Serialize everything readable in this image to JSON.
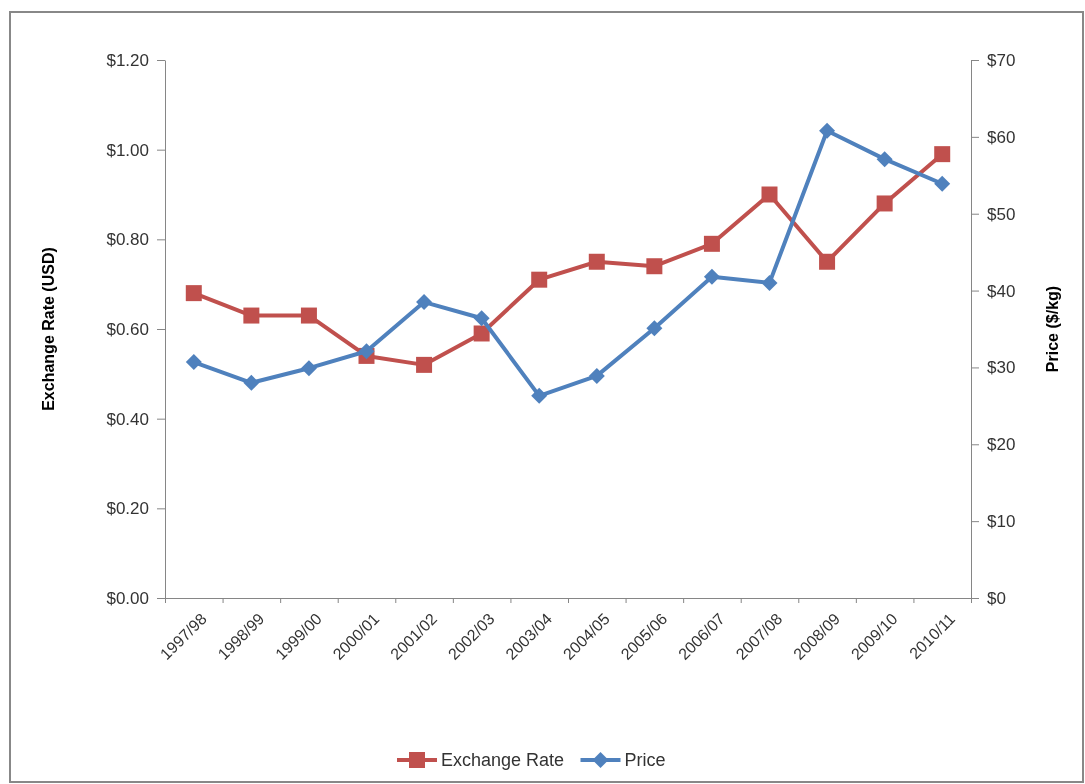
{
  "chart_data": {
    "type": "line",
    "categories": [
      "1997/98",
      "1998/99",
      "1999/00",
      "2000/01",
      "2001/02",
      "2002/03",
      "2003/04",
      "2004/05",
      "2005/06",
      "2006/07",
      "2007/08",
      "2008/09",
      "2009/10",
      "2010/11"
    ],
    "series": [
      {
        "name": "Exchange Rate",
        "color": "#c0504d",
        "marker": "square",
        "values": [
          0.68,
          0.63,
          0.63,
          0.54,
          0.52,
          0.59,
          0.71,
          0.75,
          0.74,
          0.79,
          0.9,
          0.75,
          0.88,
          0.99
        ]
      },
      {
        "name": "Price",
        "color": "#4f81bd",
        "marker": "diamond",
        "axis": "y2",
        "values": [
          30.7,
          28.0,
          29.9,
          32.1,
          38.5,
          36.4,
          26.3,
          28.9,
          35.1,
          41.8,
          41.0,
          60.8,
          57.1,
          53.9
        ]
      }
    ],
    "ylabel": "Exchange Rate (USD)",
    "y2label": "Price ($/kg)",
    "ylim": [
      0,
      1.2
    ],
    "yticks": [
      {
        "value": 0,
        "label": "$0.00"
      },
      {
        "value": 0.2,
        "label": "$0.20"
      },
      {
        "value": 0.4,
        "label": "$0.40"
      },
      {
        "value": 0.6,
        "label": "$0.60"
      },
      {
        "value": 0.8,
        "label": "$0.80"
      },
      {
        "value": 1.0,
        "label": "$1.00"
      },
      {
        "value": 1.2,
        "label": "$1.20"
      }
    ],
    "y2lim": [
      0,
      70
    ],
    "y2ticks": [
      {
        "value": 0,
        "label": "$0"
      },
      {
        "value": 10,
        "label": "$10"
      },
      {
        "value": 20,
        "label": "$20"
      },
      {
        "value": 30,
        "label": "$30"
      },
      {
        "value": 40,
        "label": "$40"
      },
      {
        "value": 50,
        "label": "$50"
      },
      {
        "value": 60,
        "label": "$60"
      },
      {
        "value": 70,
        "label": "$70"
      }
    ],
    "grid": false,
    "legend": "bottom"
  }
}
